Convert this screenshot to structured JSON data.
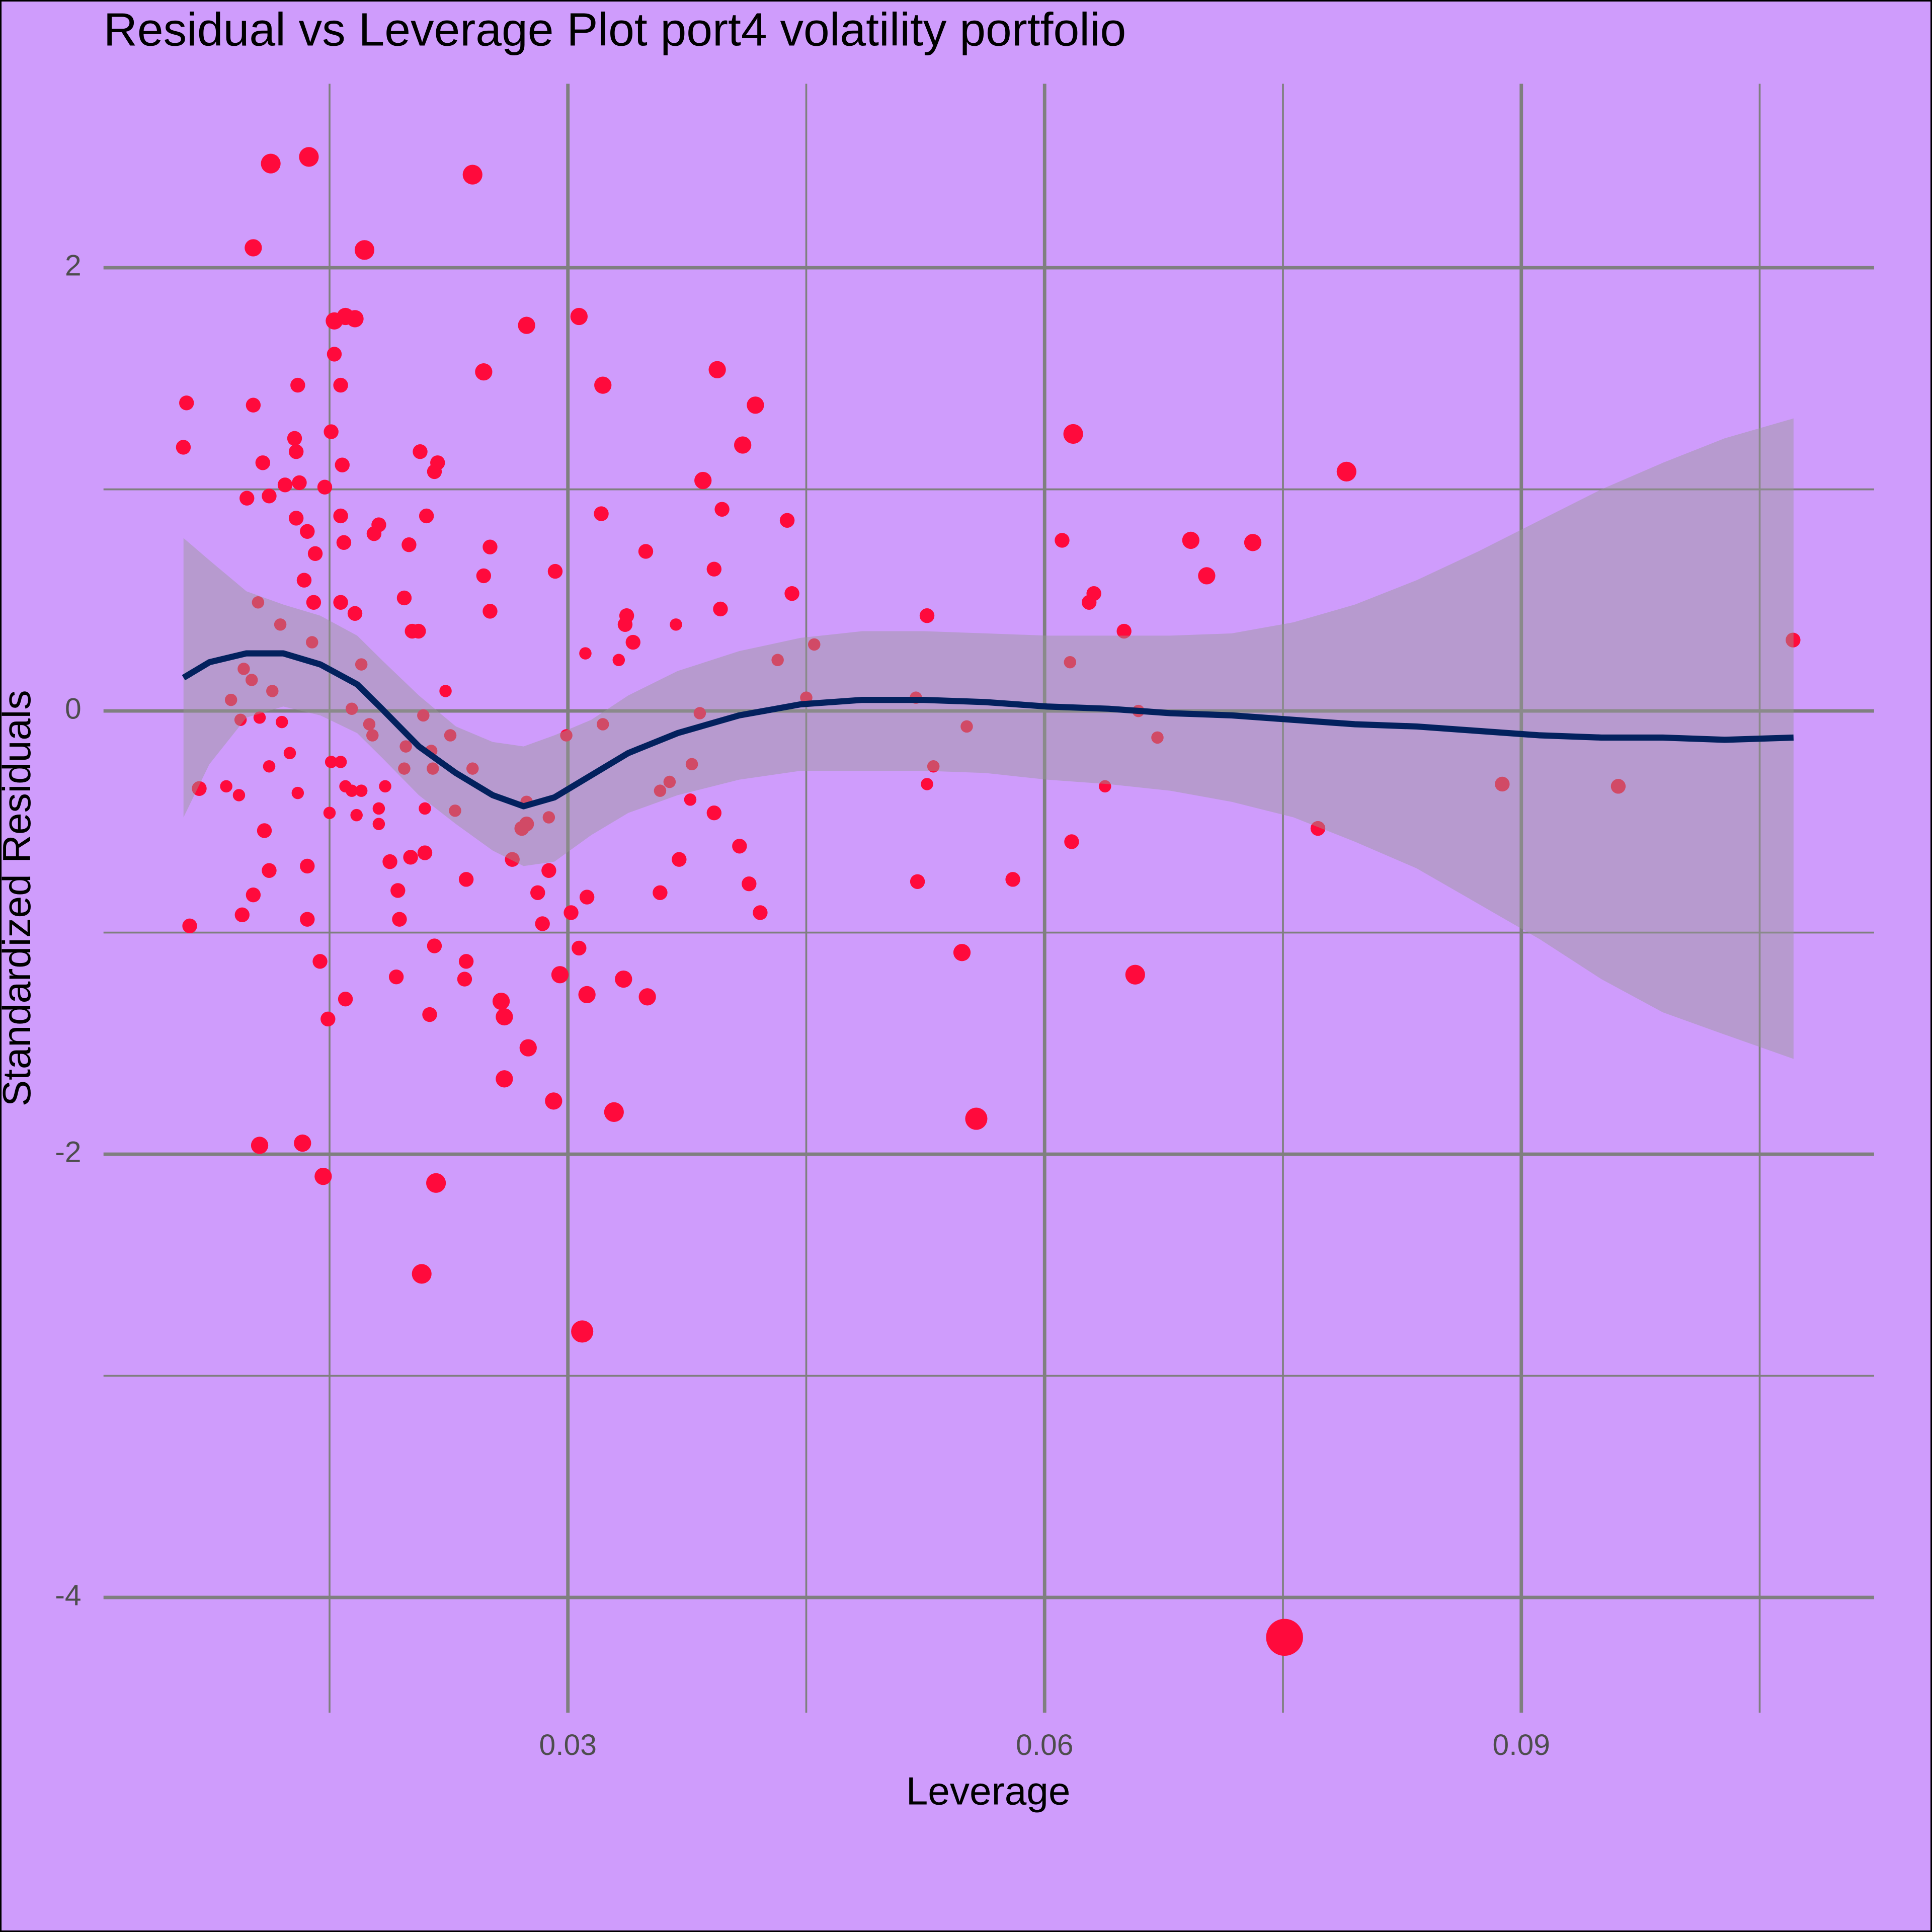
{
  "chart_data": {
    "type": "scatter",
    "title": "Residual vs Leverage Plot port4 volatility portfolio",
    "x_label": "Leverage",
    "y_label": "Standardized Residuals",
    "xlim": [
      0.000775,
      0.1122
    ],
    "ylim": [
      -4.52,
      2.83
    ],
    "xticks": [
      0.03,
      0.06,
      0.09
    ],
    "yticks": [
      -4,
      -2,
      0,
      2
    ],
    "x_minor_grid": [
      0.015,
      0.045,
      0.075,
      0.105
    ],
    "y_minor_grid": [
      -3,
      -1,
      1
    ],
    "grid": true,
    "background": "#cf9cfc",
    "points": {
      "color": "#ff0a3c",
      "x": [
        0.0058,
        0.006,
        0.0062,
        0.0068,
        0.0102,
        0.0113,
        0.0137,
        0.0172,
        0.024,
        0.0153,
        0.016,
        0.0166,
        0.0153,
        0.0157,
        0.013,
        0.0102,
        0.0151,
        0.0128,
        0.0129,
        0.0108,
        0.0158,
        0.0131,
        0.0122,
        0.0112,
        0.0098,
        0.0147,
        0.0157,
        0.0129,
        0.0136,
        0.0181,
        0.0178,
        0.0159,
        0.0141,
        0.02,
        0.0134,
        0.014,
        0.0105,
        0.0157,
        0.0166,
        0.0119,
        0.0139,
        0.0096,
        0.0101,
        0.0088,
        0.0094,
        0.0114,
        0.0106,
        0.012,
        0.0125,
        0.0112,
        0.0085,
        0.0093,
        0.0109,
        0.0112,
        0.0102,
        0.0095,
        0.013,
        0.0136,
        0.0136,
        0.0144,
        0.0149,
        0.016,
        0.0106,
        0.0133,
        0.0146,
        0.015,
        0.0151,
        0.0157,
        0.016,
        0.0164,
        0.017,
        0.0167,
        0.0181,
        0.0181,
        0.0185,
        0.0188,
        0.0193,
        0.0194,
        0.0192,
        0.0164,
        0.017,
        0.0175,
        0.0177,
        0.0197,
        0.0202,
        0.0206,
        0.0211,
        0.0207,
        0.0216,
        0.0218,
        0.0247,
        0.0274,
        0.0307,
        0.0322,
        0.0394,
        0.0418,
        0.041,
        0.0385,
        0.0397,
        0.0321,
        0.0251,
        0.0247,
        0.0292,
        0.0251,
        0.0349,
        0.0392,
        0.0438,
        0.0441,
        0.0396,
        0.0337,
        0.0336,
        0.0341,
        0.0311,
        0.0332,
        0.0368,
        0.0432,
        0.0455,
        0.045,
        0.0383,
        0.0322,
        0.0299,
        0.0223,
        0.0209,
        0.0214,
        0.0226,
        0.0215,
        0.0198,
        0.0197,
        0.021,
        0.0229,
        0.024,
        0.021,
        0.0201,
        0.0236,
        0.0216,
        0.0213,
        0.0236,
        0.0235,
        0.0208,
        0.0217,
        0.0258,
        0.026,
        0.026,
        0.0275,
        0.0291,
        0.0295,
        0.0281,
        0.0284,
        0.0288,
        0.0265,
        0.0271,
        0.0274,
        0.0274,
        0.0288,
        0.0302,
        0.0307,
        0.0312,
        0.0312,
        0.0335,
        0.035,
        0.0329,
        0.0309,
        0.0358,
        0.037,
        0.0358,
        0.0364,
        0.0377,
        0.0378,
        0.0392,
        0.0408,
        0.0414,
        0.0421,
        0.0526,
        0.0519,
        0.0551,
        0.053,
        0.0526,
        0.052,
        0.0548,
        0.058,
        0.0557,
        0.0611,
        0.0618,
        0.0616,
        0.0628,
        0.0631,
        0.065,
        0.0659,
        0.0671,
        0.0638,
        0.0617,
        0.0657,
        0.0692,
        0.0702,
        0.0731,
        0.079,
        0.0772,
        0.0751,
        0.0888,
        0.0961,
        0.1071
      ],
      "y": [
        1.19,
        1.39,
        -0.97,
        -0.35,
        2.09,
        2.47,
        2.5,
        2.08,
        2.42,
        1.76,
        1.78,
        1.77,
        1.61,
        1.47,
        1.47,
        1.38,
        1.26,
        1.23,
        1.17,
        1.12,
        1.11,
        1.03,
        1.02,
        0.97,
        0.96,
        1.01,
        0.88,
        0.87,
        0.81,
        0.84,
        0.8,
        0.76,
        0.71,
        0.75,
        0.59,
        0.49,
        0.49,
        0.49,
        0.44,
        0.39,
        0.31,
        0.19,
        0.14,
        0.05,
        -0.04,
        0.09,
        -0.03,
        -0.05,
        -0.19,
        -0.25,
        -0.34,
        -0.38,
        -0.54,
        -0.72,
        -0.83,
        -0.92,
        -0.37,
        -0.7,
        -0.94,
        -1.13,
        -1.39,
        -1.3,
        -1.96,
        -1.95,
        -2.1,
        -0.46,
        -0.23,
        -0.23,
        -0.34,
        -0.36,
        -0.36,
        -0.47,
        -0.51,
        -0.44,
        -0.34,
        -0.68,
        -0.81,
        -0.94,
        -1.2,
        0.01,
        0.21,
        -0.06,
        -0.11,
        0.51,
        0.36,
        0.36,
        0.88,
        1.17,
        1.08,
        1.12,
        1.53,
        1.74,
        1.78,
        1.47,
        1.54,
        1.38,
        1.2,
        1.04,
        0.91,
        0.89,
        0.74,
        0.61,
        0.63,
        0.45,
        0.72,
        0.64,
        0.86,
        0.53,
        0.46,
        0.43,
        0.39,
        0.31,
        0.26,
        0.23,
        0.39,
        0.23,
        0.3,
        0.06,
        -0.01,
        -0.06,
        -0.11,
        0.09,
        -0.02,
        -0.18,
        -0.11,
        -0.26,
        -0.16,
        -0.26,
        -0.44,
        -0.45,
        -0.26,
        -0.64,
        -0.66,
        -0.76,
        -1.06,
        -1.37,
        -1.13,
        -1.21,
        -2.54,
        -2.13,
        -1.31,
        -1.38,
        -1.66,
        -1.52,
        -1.76,
        -1.19,
        -0.82,
        -0.96,
        -0.72,
        -0.67,
        -0.53,
        -0.51,
        -0.41,
        -0.48,
        -0.91,
        -1.07,
        -0.84,
        -1.28,
        -1.21,
        -1.29,
        -1.81,
        -2.8,
        -0.82,
        -0.67,
        -0.36,
        -0.32,
        -0.4,
        -0.24,
        -0.46,
        -0.61,
        -0.78,
        -0.91,
        0.43,
        0.06,
        -0.07,
        -0.25,
        -0.33,
        -0.77,
        -1.09,
        -0.76,
        -1.84,
        0.77,
        1.25,
        0.22,
        0.49,
        0.53,
        0.36,
        0.0,
        -0.12,
        -0.34,
        -0.59,
        -1.19,
        0.77,
        0.61,
        0.76,
        1.08,
        -0.53,
        -4.18,
        -0.33,
        -0.34,
        0.32
      ],
      "size": [
        1.5,
        1.5,
        1.5,
        1.5,
        2,
        2.5,
        2.5,
        2.5,
        2.5,
        2,
        2,
        2,
        1.5,
        1.5,
        1.5,
        1.5,
        1.5,
        1.5,
        1.5,
        1.5,
        1.5,
        1.5,
        1.5,
        1.5,
        1.5,
        1.5,
        1.5,
        1.5,
        1.5,
        1.5,
        1.5,
        1.5,
        1.5,
        1.5,
        1.5,
        1.5,
        1,
        1.5,
        1.5,
        1,
        1,
        1,
        1,
        1,
        1,
        1,
        1,
        1,
        1,
        1,
        1,
        1,
        1.5,
        1.5,
        1.5,
        1.5,
        1,
        1.5,
        1.5,
        1.5,
        1.5,
        1.5,
        2,
        2,
        2,
        1,
        1,
        1,
        1,
        1,
        1,
        1,
        1,
        1,
        1,
        1.5,
        1.5,
        1.5,
        1.5,
        1,
        1,
        1,
        1,
        1.5,
        1.5,
        1.5,
        1.5,
        1.5,
        1.5,
        1.5,
        2,
        2,
        2,
        2,
        2,
        2,
        2,
        2,
        1.5,
        1.5,
        1.5,
        1.5,
        1.5,
        1.5,
        1.5,
        1.5,
        1.5,
        1.5,
        1.5,
        1.5,
        1.5,
        1.5,
        1,
        1,
        1,
        1,
        1,
        1,
        1,
        1,
        1,
        1,
        1,
        1,
        1,
        1,
        1,
        1,
        1,
        1,
        1,
        1.5,
        1.5,
        1.5,
        1.5,
        1.5,
        1.5,
        1.5,
        2.5,
        2.5,
        2,
        2,
        2,
        2,
        2,
        2,
        1.5,
        1.5,
        1.5,
        1.5,
        1.5,
        1.5,
        1,
        1,
        1.5,
        1.5,
        1.5,
        2,
        2,
        2,
        2.5,
        3,
        1.5,
        1.5,
        1,
        1,
        1,
        1,
        1.5,
        1.5,
        1.5,
        1.5,
        1.5,
        1,
        1,
        1,
        1,
        1.5,
        2,
        1.5,
        3,
        1.5,
        2.5,
        1,
        1.5,
        1.5,
        1.5,
        1,
        1,
        1,
        1.5,
        2.5,
        2,
        2,
        2,
        2.5,
        1.5,
        6,
        1.5,
        1.5,
        1.5
      ]
    },
    "smooth": {
      "color": "#03215e",
      "band_color": "#9a9a9a",
      "x": [
        0.00581,
        0.00744,
        0.00977,
        0.01209,
        0.01442,
        0.01674,
        0.01829,
        0.02062,
        0.02295,
        0.02527,
        0.02721,
        0.02915,
        0.03147,
        0.0338,
        0.0369,
        0.04078,
        0.04465,
        0.04853,
        0.0524,
        0.05628,
        0.06016,
        0.06403,
        0.06791,
        0.07178,
        0.07566,
        0.07953,
        0.08341,
        0.08729,
        0.09116,
        0.09504,
        0.09891,
        0.10279,
        0.10713
      ],
      "values": [
        0.15,
        0.22,
        0.26,
        0.26,
        0.21,
        0.12,
        0.01,
        -0.16,
        -0.28,
        -0.38,
        -0.43,
        -0.39,
        -0.29,
        -0.19,
        -0.1,
        -0.02,
        0.03,
        0.05,
        0.05,
        0.04,
        0.02,
        0.01,
        -0.01,
        -0.02,
        -0.04,
        -0.06,
        -0.07,
        -0.09,
        -0.11,
        -0.12,
        -0.12,
        -0.13,
        -0.12
      ],
      "upper": [
        0.78,
        0.68,
        0.54,
        0.48,
        0.43,
        0.34,
        0.23,
        0.07,
        -0.07,
        -0.14,
        -0.16,
        -0.11,
        -0.04,
        0.07,
        0.18,
        0.27,
        0.33,
        0.36,
        0.36,
        0.35,
        0.34,
        0.34,
        0.34,
        0.35,
        0.4,
        0.48,
        0.59,
        0.72,
        0.86,
        1.0,
        1.12,
        1.23,
        1.32
      ],
      "lower": [
        -0.48,
        -0.24,
        -0.03,
        0.02,
        -0.02,
        -0.1,
        -0.21,
        -0.38,
        -0.51,
        -0.63,
        -0.7,
        -0.68,
        -0.56,
        -0.46,
        -0.38,
        -0.31,
        -0.27,
        -0.27,
        -0.27,
        -0.28,
        -0.31,
        -0.33,
        -0.36,
        -0.41,
        -0.48,
        -0.59,
        -0.71,
        -0.87,
        -1.03,
        -1.21,
        -1.36,
        -1.46,
        -1.57
      ]
    }
  }
}
